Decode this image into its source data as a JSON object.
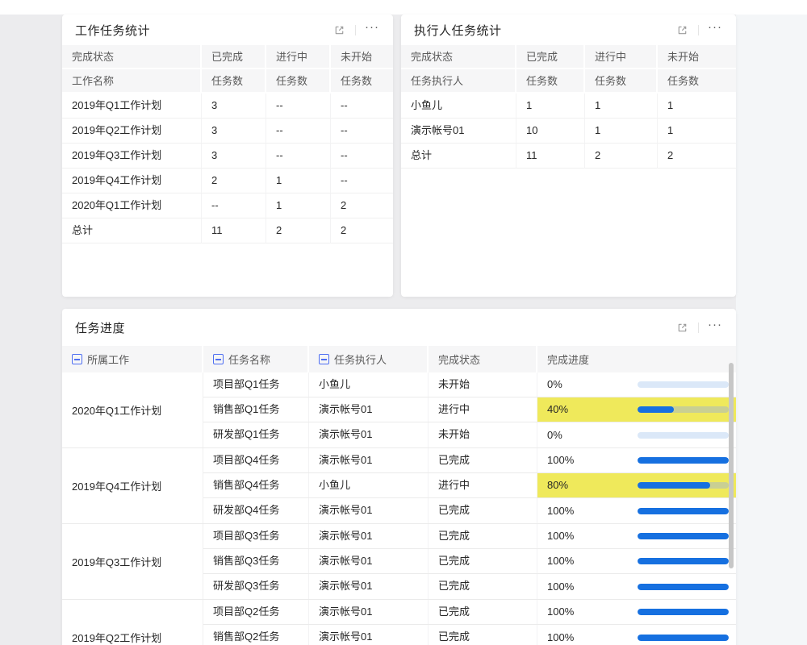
{
  "icons": {
    "more": "···"
  },
  "colors": {
    "accent_blue": "#1670e0",
    "progress_track": "#dbe8f8",
    "highlight_yellow": "#efe95b",
    "collapse_blue": "#4e6ef2",
    "header_bg": "#f6f6f7"
  },
  "panel_work_stats": {
    "title": "工作任务统计",
    "header1": [
      "完成状态",
      "已完成",
      "进行中",
      "未开始"
    ],
    "header2": [
      "工作名称",
      "任务数",
      "任务数",
      "任务数"
    ],
    "rows": [
      [
        "2019年Q1工作计划",
        "3",
        "--",
        "--"
      ],
      [
        "2019年Q2工作计划",
        "3",
        "--",
        "--"
      ],
      [
        "2019年Q3工作计划",
        "3",
        "--",
        "--"
      ],
      [
        "2019年Q4工作计划",
        "2",
        "1",
        "--"
      ],
      [
        "2020年Q1工作计划",
        "--",
        "1",
        "2"
      ],
      [
        "总计",
        "11",
        "2",
        "2"
      ]
    ]
  },
  "panel_executor_stats": {
    "title": "执行人任务统计",
    "header1": [
      "完成状态",
      "已完成",
      "进行中",
      "未开始"
    ],
    "header2": [
      "任务执行人",
      "任务数",
      "任务数",
      "任务数"
    ],
    "rows": [
      [
        "小鱼儿",
        "1",
        "1",
        "1"
      ],
      [
        "演示帐号01",
        "10",
        "1",
        "1"
      ],
      [
        "总计",
        "11",
        "2",
        "2"
      ]
    ]
  },
  "panel_progress": {
    "title": "任务进度",
    "headers": [
      "所属工作",
      "任务名称",
      "任务执行人",
      "完成状态",
      "完成进度"
    ],
    "groups": [
      {
        "work": "2020年Q1工作计划",
        "tasks": [
          {
            "task": "项目部Q1任务",
            "executor": "小鱼儿",
            "status": "未开始",
            "pct_label": "0%",
            "pct": 0
          },
          {
            "task": "销售部Q1任务",
            "executor": "演示帐号01",
            "status": "进行中",
            "pct_label": "40%",
            "pct": 40
          },
          {
            "task": "研发部Q1任务",
            "executor": "演示帐号01",
            "status": "未开始",
            "pct_label": "0%",
            "pct": 0
          }
        ]
      },
      {
        "work": "2019年Q4工作计划",
        "tasks": [
          {
            "task": "项目部Q4任务",
            "executor": "演示帐号01",
            "status": "已完成",
            "pct_label": "100%",
            "pct": 100
          },
          {
            "task": "销售部Q4任务",
            "executor": "小鱼儿",
            "status": "进行中",
            "pct_label": "80%",
            "pct": 80
          },
          {
            "task": "研发部Q4任务",
            "executor": "演示帐号01",
            "status": "已完成",
            "pct_label": "100%",
            "pct": 100
          }
        ]
      },
      {
        "work": "2019年Q3工作计划",
        "tasks": [
          {
            "task": "项目部Q3任务",
            "executor": "演示帐号01",
            "status": "已完成",
            "pct_label": "100%",
            "pct": 100
          },
          {
            "task": "销售部Q3任务",
            "executor": "演示帐号01",
            "status": "已完成",
            "pct_label": "100%",
            "pct": 100
          },
          {
            "task": "研发部Q3任务",
            "executor": "演示帐号01",
            "status": "已完成",
            "pct_label": "100%",
            "pct": 100
          }
        ]
      },
      {
        "work": "2019年Q2工作计划",
        "tasks": [
          {
            "task": "项目部Q2任务",
            "executor": "演示帐号01",
            "status": "已完成",
            "pct_label": "100%",
            "pct": 100
          },
          {
            "task": "销售部Q2任务",
            "executor": "演示帐号01",
            "status": "已完成",
            "pct_label": "100%",
            "pct": 100
          }
        ]
      }
    ]
  }
}
